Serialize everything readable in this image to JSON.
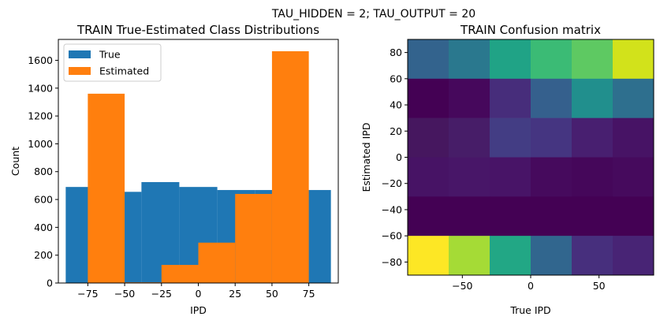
{
  "suptitle": "TAU_HIDDEN = 2; TAU_OUTPUT = 20",
  "chart_data": [
    {
      "type": "bar",
      "title": "TRAIN True-Estimated Class Distributions",
      "xlabel": "IPD",
      "ylabel": "Count",
      "xlim": [
        -95,
        95
      ],
      "ylim": [
        0,
        1750
      ],
      "xticks": [
        -75,
        -50,
        -25,
        0,
        25,
        50,
        75
      ],
      "xtick_labels": [
        "−75",
        "−50",
        "−25",
        "0",
        "25",
        "50",
        "75"
      ],
      "yticks": [
        0,
        200,
        400,
        600,
        800,
        1000,
        1200,
        1400,
        1600
      ],
      "yticks_labels": [
        "0",
        "200",
        "400",
        "600",
        "800",
        "1000",
        "1200",
        "1400",
        "1600"
      ],
      "bin_edges": [
        -90,
        -64.3,
        -38.6,
        -12.9,
        12.9,
        38.6,
        64.3,
        90
      ],
      "legend": {
        "position": "upper-left"
      },
      "series": [
        {
          "name": "True",
          "color": "#1f77b4",
          "values": [
            690,
            655,
            725,
            690,
            668,
            668,
            668
          ]
        },
        {
          "name": "Estimated",
          "color": "#ff7f0e",
          "bins": [
            {
              "x0": -75,
              "x1": -50,
              "value": 1360
            },
            {
              "x0": -50,
              "x1": -25,
              "value": 5
            },
            {
              "x0": -25,
              "x1": 0,
              "value": 130
            },
            {
              "x0": 0,
              "x1": 25,
              "value": 290
            },
            {
              "x0": 25,
              "x1": 50,
              "value": 640
            },
            {
              "x0": 50,
              "x1": 75,
              "value": 1665
            }
          ]
        }
      ]
    },
    {
      "type": "heatmap",
      "title": "TRAIN Confusion matrix",
      "xlabel": "True IPD",
      "ylabel": "Estimated IPD",
      "xlim": [
        -90,
        90
      ],
      "ylim": [
        -90,
        90
      ],
      "xticks": [
        -50,
        0,
        50
      ],
      "xtick_labels": [
        "−50",
        "0",
        "50"
      ],
      "yticks": [
        -80,
        -60,
        -40,
        -20,
        0,
        20,
        40,
        60,
        80
      ],
      "ytick_labels": [
        "−80",
        "−60",
        "−40",
        "−20",
        "0",
        "20",
        "40",
        "60",
        "80"
      ],
      "x_bins": [
        -90,
        -60,
        -30,
        0,
        30,
        60,
        90
      ],
      "y_bins": [
        -90,
        -60,
        -30,
        0,
        30,
        60,
        90
      ],
      "rows_top_to_bottom": [
        [
          "#33638d",
          "#2a788e",
          "#20a386",
          "#3bbb75",
          "#5ec962",
          "#d2e21b"
        ],
        [
          "#440154",
          "#46085c",
          "#472d7b",
          "#35608d",
          "#218f8d",
          "#2e6f8e"
        ],
        [
          "#46175f",
          "#471d68",
          "#433d84",
          "#453581",
          "#481f70",
          "#471365"
        ],
        [
          "#471365",
          "#481668",
          "#481467",
          "#460a5d",
          "#45075a",
          "#460a5d"
        ],
        [
          "#440154",
          "#440154",
          "#440154",
          "#440154",
          "#440154",
          "#440154"
        ],
        [
          "#fde725",
          "#a5db36",
          "#22a785",
          "#31668e",
          "#472f7d",
          "#482475"
        ]
      ]
    }
  ]
}
